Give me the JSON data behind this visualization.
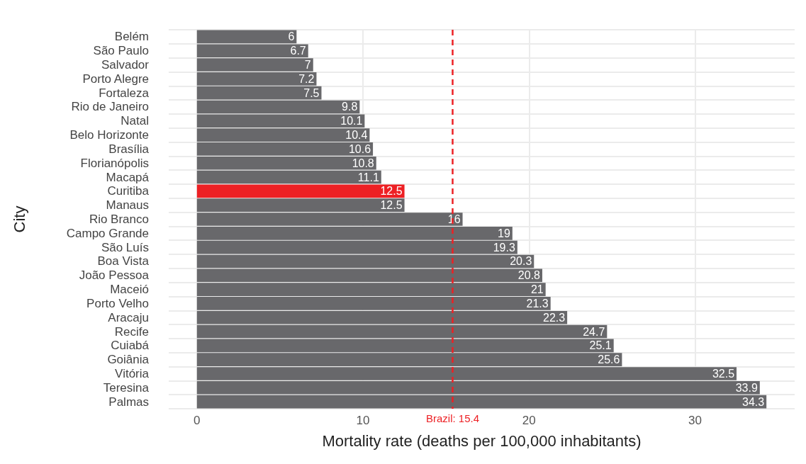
{
  "chart_data": {
    "type": "bar",
    "orientation": "horizontal",
    "xlabel": "Mortality rate (deaths per 100,000 inhabitants)",
    "ylabel": "City",
    "categories": [
      "Belém",
      "São Paulo",
      "Salvador",
      "Porto Alegre",
      "Fortaleza",
      "Rio de Janeiro",
      "Natal",
      "Belo Horizonte",
      "Brasília",
      "Florianópolis",
      "Macapá",
      "Curitiba",
      "Manaus",
      "Rio Branco",
      "Campo Grande",
      "São Luís",
      "Boa Vista",
      "João Pessoa",
      "Maceió",
      "Porto Velho",
      "Aracaju",
      "Recife",
      "Cuiabá",
      "Goiânia",
      "Vitória",
      "Teresina",
      "Palmas"
    ],
    "values": [
      6,
      6.7,
      7,
      7.2,
      7.5,
      9.8,
      10.1,
      10.4,
      10.6,
      10.8,
      11.1,
      12.5,
      12.5,
      16,
      19,
      19.3,
      20.3,
      20.8,
      21,
      21.3,
      22.3,
      24.7,
      25.1,
      25.6,
      32.5,
      33.9,
      34.3
    ],
    "colors": [
      "#68686b",
      "#68686b",
      "#68686b",
      "#68686b",
      "#68686b",
      "#68686b",
      "#68686b",
      "#68686b",
      "#68686b",
      "#68686b",
      "#68686b",
      "#ed2024",
      "#68686b",
      "#68686b",
      "#68686b",
      "#68686b",
      "#68686b",
      "#68686b",
      "#68686b",
      "#68686b",
      "#68686b",
      "#68686b",
      "#68686b",
      "#68686b",
      "#68686b",
      "#68686b",
      "#68686b"
    ],
    "xlim": [
      -1.7,
      36
    ],
    "xticks": [
      0,
      10,
      20,
      30
    ],
    "grid": true,
    "data_labels": true,
    "ref_lines": [
      {
        "axis": "x",
        "value": 15.4,
        "label": "Brazil: 15.4",
        "color": "#ed2024",
        "line_style": "dashed"
      }
    ]
  }
}
